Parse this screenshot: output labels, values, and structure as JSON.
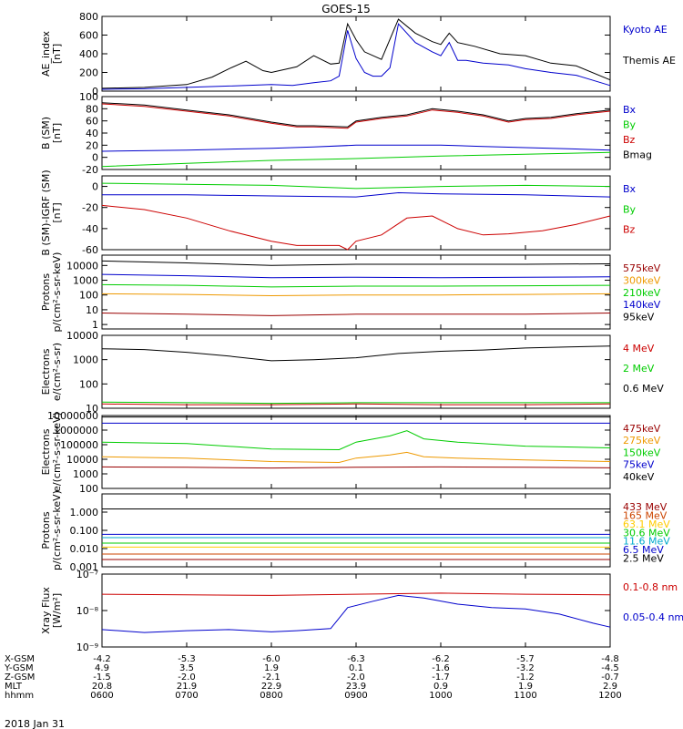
{
  "title": "GOES-15",
  "date_label": "2018 Jan 31",
  "time_axis": {
    "row_labels": [
      "X-GSM",
      "Y-GSM",
      "Z-GSM",
      "MLT",
      "hhmm"
    ],
    "columns": [
      [
        "-4.2",
        "4.9",
        "-1.5",
        "20.8",
        "0600"
      ],
      [
        "-5.3",
        "3.5",
        "-2.0",
        "21.9",
        "0700"
      ],
      [
        "-6.0",
        "1.9",
        "-2.1",
        "22.9",
        "0800"
      ],
      [
        "-6.3",
        "0.1",
        "-2.0",
        "23.9",
        "0900"
      ],
      [
        "-6.2",
        "-1.6",
        "-1.7",
        "0.9",
        "1000"
      ],
      [
        "-5.7",
        "-3.2",
        "-1.2",
        "1.9",
        "1100"
      ],
      [
        "-4.8",
        "-4.5",
        "-0.7",
        "2.9",
        "1200"
      ]
    ]
  },
  "chart_data": [
    {
      "type": "line",
      "ylabel": [
        "AE_index",
        "[nT]"
      ],
      "ylim": [
        0,
        800
      ],
      "y_scale": "linear",
      "y_ticks": [
        0,
        200,
        400,
        600,
        800
      ],
      "legend": [
        {
          "text": "Kyoto AE",
          "color": "#0000cc"
        },
        {
          "text": "Themis AE",
          "color": "#000000"
        }
      ],
      "series": [
        {
          "name": "Kyoto AE",
          "color": "#0000cc",
          "x": [
            0,
            0.5,
            1,
            1.5,
            2,
            2.25,
            2.5,
            2.7,
            2.8,
            2.9,
            3,
            3.1,
            3.2,
            3.3,
            3.4,
            3.5,
            3.7,
            3.9,
            4,
            4.1,
            4.2,
            4.3,
            4.5,
            4.8,
            5,
            5.3,
            5.6,
            6
          ],
          "y": [
            20,
            25,
            40,
            55,
            70,
            60,
            90,
            110,
            160,
            650,
            350,
            200,
            160,
            160,
            250,
            720,
            520,
            420,
            380,
            520,
            330,
            330,
            300,
            280,
            240,
            200,
            170,
            60
          ]
        },
        {
          "name": "Themis AE",
          "color": "#000000",
          "x": [
            0,
            0.5,
            1,
            1.3,
            1.5,
            1.7,
            1.9,
            2,
            2.3,
            2.5,
            2.7,
            2.8,
            2.9,
            3,
            3.1,
            3.3,
            3.5,
            3.7,
            3.9,
            4,
            4.1,
            4.2,
            4.4,
            4.7,
            5,
            5.3,
            5.6,
            6
          ],
          "y": [
            30,
            40,
            70,
            150,
            240,
            320,
            220,
            200,
            260,
            380,
            290,
            300,
            720,
            550,
            420,
            340,
            770,
            620,
            530,
            500,
            620,
            520,
            480,
            400,
            380,
            300,
            270,
            120
          ]
        }
      ]
    },
    {
      "type": "line",
      "ylabel": [
        "B (SM)",
        "[nT]"
      ],
      "ylim": [
        -20,
        100
      ],
      "y_scale": "linear",
      "y_ticks": [
        -20,
        0,
        20,
        40,
        60,
        80,
        100
      ],
      "legend": [
        {
          "text": "Bx",
          "color": "#0000cc"
        },
        {
          "text": "By",
          "color": "#00cc00"
        },
        {
          "text": "Bz",
          "color": "#cc0000"
        },
        {
          "text": "Bmag",
          "color": "#000000"
        }
      ],
      "series": [
        {
          "name": "Bx",
          "color": "#0000cc",
          "x": [
            0,
            1,
            2,
            2.5,
            3,
            3.5,
            4,
            4.5,
            5,
            5.5,
            6
          ],
          "y": [
            10,
            12,
            15,
            17,
            20,
            20,
            20,
            18,
            16,
            14,
            12
          ]
        },
        {
          "name": "By",
          "color": "#00cc00",
          "x": [
            0,
            1,
            2,
            3,
            4,
            5,
            6
          ],
          "y": [
            -15,
            -10,
            -5,
            -2,
            2,
            5,
            8
          ]
        },
        {
          "name": "Bz",
          "color": "#cc0000",
          "x": [
            0,
            0.5,
            1,
            1.5,
            2,
            2.3,
            2.5,
            2.9,
            3,
            3.3,
            3.6,
            3.9,
            4.2,
            4.5,
            4.8,
            5,
            5.3,
            5.6,
            6
          ],
          "y": [
            88,
            84,
            76,
            68,
            56,
            50,
            50,
            48,
            58,
            64,
            68,
            78,
            74,
            68,
            58,
            62,
            64,
            70,
            76
          ]
        },
        {
          "name": "Bmag",
          "color": "#000000",
          "x": [
            0,
            0.5,
            1,
            1.5,
            2,
            2.3,
            2.5,
            2.9,
            3,
            3.3,
            3.6,
            3.9,
            4.2,
            4.5,
            4.8,
            5,
            5.3,
            5.6,
            6
          ],
          "y": [
            90,
            86,
            78,
            70,
            58,
            52,
            52,
            50,
            60,
            66,
            70,
            80,
            76,
            70,
            60,
            64,
            66,
            72,
            78
          ]
        }
      ]
    },
    {
      "type": "line",
      "ylabel": [
        "B (SM)-IGRF (SM)",
        "[nT]"
      ],
      "ylim": [
        -60,
        10
      ],
      "y_scale": "linear",
      "y_ticks": [
        -60,
        -40,
        -20,
        0
      ],
      "legend": [
        {
          "text": "Bx",
          "color": "#0000cc"
        },
        {
          "text": "By",
          "color": "#00cc00"
        },
        {
          "text": "Bz",
          "color": "#cc0000"
        }
      ],
      "series": [
        {
          "name": "Bx",
          "color": "#0000cc",
          "x": [
            0,
            1,
            2,
            3,
            3.5,
            4,
            5,
            6
          ],
          "y": [
            -8,
            -8,
            -9,
            -10,
            -6,
            -7,
            -8,
            -10
          ]
        },
        {
          "name": "By",
          "color": "#00cc00",
          "x": [
            0,
            1,
            2,
            3,
            3.5,
            4,
            5,
            6
          ],
          "y": [
            3,
            2,
            1,
            -2,
            -1,
            0,
            1,
            0
          ]
        },
        {
          "name": "Bz",
          "color": "#cc0000",
          "x": [
            0,
            0.5,
            1,
            1.5,
            2,
            2.3,
            2.8,
            2.9,
            3,
            3.3,
            3.6,
            3.9,
            4.2,
            4.5,
            4.8,
            5.2,
            5.6,
            6
          ],
          "y": [
            -18,
            -22,
            -30,
            -42,
            -52,
            -56,
            -56,
            -60,
            -52,
            -46,
            -30,
            -28,
            -40,
            -46,
            -45,
            -42,
            -36,
            -28
          ]
        }
      ]
    },
    {
      "type": "line",
      "ylabel": [
        "Protons",
        "p/(cm²-s-sr-keV)"
      ],
      "ylim": [
        0.5,
        50000
      ],
      "y_scale": "log",
      "y_ticks": [
        1,
        10,
        100,
        1000,
        10000
      ],
      "legend": [
        {
          "text": "575keV",
          "color": "#990000"
        },
        {
          "text": "300keV",
          "color": "#ee9900"
        },
        {
          "text": "210keV",
          "color": "#00cc00"
        },
        {
          "text": "140keV",
          "color": "#0000cc"
        },
        {
          "text": "95keV",
          "color": "#000000"
        }
      ],
      "series": [
        {
          "name": "95keV",
          "color": "#000000",
          "x": [
            0,
            1,
            2,
            3,
            4,
            5,
            6
          ],
          "y": [
            20000,
            15000,
            10000,
            12000,
            12000,
            12000,
            13000
          ]
        },
        {
          "name": "140keV",
          "color": "#0000cc",
          "x": [
            0,
            1,
            2,
            3,
            4,
            5,
            6
          ],
          "y": [
            2500,
            2000,
            1500,
            1600,
            1500,
            1600,
            1700
          ]
        },
        {
          "name": "210keV",
          "color": "#00cc00",
          "x": [
            0,
            1,
            2,
            3,
            4,
            5,
            6
          ],
          "y": [
            500,
            450,
            350,
            400,
            400,
            420,
            450
          ]
        },
        {
          "name": "300keV",
          "color": "#ee9900",
          "x": [
            0,
            1,
            2,
            3,
            4,
            5,
            6
          ],
          "y": [
            120,
            110,
            90,
            100,
            100,
            110,
            120
          ]
        },
        {
          "name": "575keV",
          "color": "#990000",
          "x": [
            0,
            1,
            2,
            3,
            4,
            5,
            6
          ],
          "y": [
            6,
            5,
            4,
            5,
            5,
            5,
            6
          ]
        }
      ]
    },
    {
      "type": "line",
      "ylabel": [
        "Electrons",
        "e/(cm²-s-sr)"
      ],
      "ylim": [
        10,
        10000
      ],
      "y_scale": "log",
      "y_ticks": [
        10,
        100,
        1000,
        10000
      ],
      "legend": [
        {
          "text": "4 MeV",
          "color": "#cc0000"
        },
        {
          "text": "2 MeV",
          "color": "#00cc00"
        },
        {
          "text": "0.6 MeV",
          "color": "#000000"
        }
      ],
      "series": [
        {
          "name": "0.6 MeV",
          "color": "#000000",
          "x": [
            0,
            0.5,
            1,
            1.5,
            2,
            2.5,
            3,
            3.5,
            4,
            4.5,
            5,
            5.5,
            6
          ],
          "y": [
            2800,
            2600,
            2000,
            1400,
            900,
            1000,
            1200,
            1800,
            2200,
            2500,
            3000,
            3300,
            3600
          ]
        },
        {
          "name": "2 MeV",
          "color": "#00cc00",
          "x": [
            0,
            1,
            2,
            3,
            4,
            5,
            6
          ],
          "y": [
            18,
            17,
            16,
            17,
            17,
            17,
            17
          ]
        },
        {
          "name": "4 MeV",
          "color": "#cc0000",
          "x": [
            0,
            1,
            2,
            3,
            4,
            5,
            6
          ],
          "y": [
            15,
            14,
            14,
            15,
            14,
            14,
            15
          ]
        }
      ]
    },
    {
      "type": "line",
      "ylabel": [
        "Electrons",
        "e/(cm²-s-sr-keV)"
      ],
      "ylim": [
        100,
        10000000
      ],
      "y_scale": "log",
      "y_ticks": [
        100,
        1000,
        10000,
        100000,
        1000000,
        10000000
      ],
      "legend": [
        {
          "text": "475keV",
          "color": "#990000"
        },
        {
          "text": "275keV",
          "color": "#ee9900"
        },
        {
          "text": "150keV",
          "color": "#00cc00"
        },
        {
          "text": "75keV",
          "color": "#0000cc"
        },
        {
          "text": "40keV",
          "color": "#000000"
        }
      ],
      "series": [
        {
          "name": "40keV",
          "color": "#000000",
          "x": [
            0,
            6
          ],
          "y": [
            8000000,
            8000000
          ]
        },
        {
          "name": "75keV",
          "color": "#0000cc",
          "x": [
            0,
            6
          ],
          "y": [
            3000000,
            3000000
          ]
        },
        {
          "name": "150keV",
          "color": "#00cc00",
          "x": [
            0,
            1,
            2,
            2.8,
            3,
            3.4,
            3.6,
            3.8,
            4.2,
            5,
            6
          ],
          "y": [
            150000,
            120000,
            50000,
            45000,
            150000,
            400000,
            900000,
            250000,
            150000,
            80000,
            60000
          ]
        },
        {
          "name": "275keV",
          "color": "#ee9900",
          "x": [
            0,
            1,
            2,
            2.8,
            3,
            3.4,
            3.6,
            3.8,
            4.2,
            5,
            6
          ],
          "y": [
            15000,
            12000,
            7000,
            6000,
            12000,
            20000,
            30000,
            15000,
            12000,
            9000,
            7000
          ]
        },
        {
          "name": "475keV",
          "color": "#990000",
          "x": [
            0,
            1,
            2,
            3,
            4,
            5,
            6
          ],
          "y": [
            3000,
            2800,
            2500,
            2800,
            3000,
            2800,
            2600
          ]
        }
      ]
    },
    {
      "type": "line",
      "ylabel": [
        "Protons",
        "p/(cm²-s-sr-keV)"
      ],
      "ylim": [
        0.001,
        10
      ],
      "y_scale": "log",
      "y_ticks": [
        0.001,
        0.01,
        0.1,
        1
      ],
      "y_tick_labels": [
        "0.001",
        "0.010",
        "0.100",
        "1.000"
      ],
      "legend": [
        {
          "text": "433 MeV",
          "color": "#990000"
        },
        {
          "text": "165 MeV",
          "color": "#cc4400"
        },
        {
          "text": "63.1 MeV",
          "color": "#ffcc00"
        },
        {
          "text": "30.6 MeV",
          "color": "#00cc00"
        },
        {
          "text": "11.6 MeV",
          "color": "#00aacc"
        },
        {
          "text": "6.5 MeV",
          "color": "#0000cc"
        },
        {
          "text": "2.5 MeV",
          "color": "#000000"
        }
      ],
      "series": [
        {
          "name": "2.5 MeV",
          "color": "#000000",
          "x": [
            0,
            6
          ],
          "y": [
            1.5,
            1.5
          ]
        },
        {
          "name": "6.5 MeV",
          "color": "#0000cc",
          "x": [
            0,
            6
          ],
          "y": [
            0.06,
            0.06
          ]
        },
        {
          "name": "11.6 MeV",
          "color": "#00aacc",
          "x": [
            0,
            6
          ],
          "y": [
            0.04,
            0.04
          ]
        },
        {
          "name": "30.6 MeV",
          "color": "#00cc00",
          "x": [
            0,
            6
          ],
          "y": [
            0.02,
            0.02
          ]
        },
        {
          "name": "63.1 MeV",
          "color": "#ffcc00",
          "x": [
            0,
            6
          ],
          "y": [
            0.012,
            0.012
          ]
        },
        {
          "name": "165 MeV",
          "color": "#cc4400",
          "x": [
            0,
            6
          ],
          "y": [
            0.005,
            0.005
          ]
        },
        {
          "name": "433 MeV",
          "color": "#990000",
          "x": [
            0,
            6
          ],
          "y": [
            0.0025,
            0.0025
          ]
        }
      ]
    },
    {
      "type": "line",
      "ylabel": [
        "Xray Flux",
        "[W/m²]"
      ],
      "ylim": [
        1e-09,
        1e-07
      ],
      "y_scale": "log",
      "y_ticks": [
        1e-09,
        1e-08,
        1e-07
      ],
      "y_tick_labels": [
        "10⁻⁹",
        "10⁻⁸",
        "10⁻⁷"
      ],
      "legend": [
        {
          "text": "0.1-0.8 nm",
          "color": "#cc0000"
        },
        {
          "text": "0.05-0.4 nm",
          "color": "#0000cc"
        }
      ],
      "series": [
        {
          "name": "0.1-0.8 nm",
          "color": "#cc0000",
          "x": [
            0,
            1,
            2,
            3,
            4,
            5,
            6
          ],
          "y": [
            2.8e-08,
            2.7e-08,
            2.6e-08,
            2.8e-08,
            3e-08,
            2.8e-08,
            2.7e-08
          ]
        },
        {
          "name": "0.05-0.4 nm",
          "color": "#0000cc",
          "x": [
            0,
            0.5,
            1,
            1.5,
            2,
            2.3,
            2.7,
            2.9,
            3.2,
            3.5,
            3.8,
            4.2,
            4.6,
            5,
            5.4,
            5.8,
            6
          ],
          "y": [
            3e-09,
            2.5e-09,
            2.8e-09,
            3e-09,
            2.6e-09,
            2.8e-09,
            3.2e-09,
            1.2e-08,
            1.8e-08,
            2.6e-08,
            2.2e-08,
            1.5e-08,
            1.2e-08,
            1.1e-08,
            8e-09,
            4.5e-09,
            3.5e-09
          ]
        }
      ]
    }
  ]
}
